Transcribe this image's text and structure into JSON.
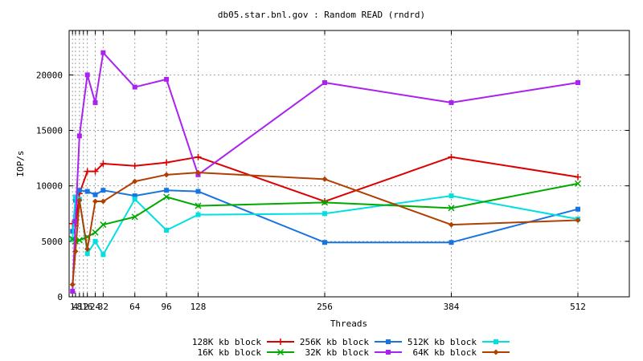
{
  "chart_data": {
    "type": "line",
    "title": "db05.star.bnl.gov : Random READ (rndrd)",
    "xlabel": "Threads",
    "ylabel": "IOP/s",
    "xlim": [
      0,
      576
    ],
    "ylim": [
      0,
      24000
    ],
    "xticks": [
      1,
      4,
      8,
      12,
      16,
      24,
      32,
      64,
      96,
      128,
      256,
      384,
      512
    ],
    "xtick_labels": [
      "1",
      "4",
      "8",
      "12",
      "16",
      "24",
      "32",
      "64",
      "96",
      "128",
      "256",
      "384",
      "512"
    ],
    "yticks": [
      0,
      5000,
      10000,
      15000,
      20000
    ],
    "grid": true,
    "legend_position": "bottom",
    "x": [
      1,
      4,
      8,
      16,
      24,
      32,
      64,
      96,
      128,
      256,
      384,
      512
    ],
    "series": [
      {
        "name": "128K kb block",
        "color": "#dd0000",
        "marker": "plus",
        "values": [
          6600,
          6400,
          9300,
          11300,
          11300,
          12000,
          11800,
          12100,
          12600,
          8600,
          12600,
          10800
        ]
      },
      {
        "name": "256K kb block",
        "color": "#1874e0",
        "marker": "square",
        "values": [
          5900,
          8700,
          9600,
          9500,
          9200,
          9600,
          9100,
          9600,
          9500,
          4900,
          4900,
          7900
        ]
      },
      {
        "name": "512K kb block",
        "color": "#00e0e0",
        "marker": "square",
        "values": [
          5200,
          9000,
          8800,
          3900,
          5000,
          3800,
          8800,
          6000,
          7400,
          7500,
          9100,
          7000
        ]
      },
      {
        "name": "16K kb block",
        "color": "#00aa00",
        "marker": "x",
        "values": [
          5200,
          5000,
          5100,
          5400,
          5800,
          6500,
          7200,
          9000,
          8200,
          8500,
          8000,
          10200
        ]
      },
      {
        "name": "32K kb block",
        "color": "#aa22ee",
        "marker": "square",
        "values": [
          500,
          6800,
          14500,
          20000,
          17500,
          22000,
          18900,
          19600,
          11000,
          19300,
          17500,
          19300
        ]
      },
      {
        "name": "64K kb block",
        "color": "#b04000",
        "marker": "diamond",
        "values": [
          1100,
          4100,
          8700,
          4300,
          8600,
          8600,
          10400,
          11000,
          11200,
          10600,
          6500,
          6900
        ]
      }
    ]
  }
}
